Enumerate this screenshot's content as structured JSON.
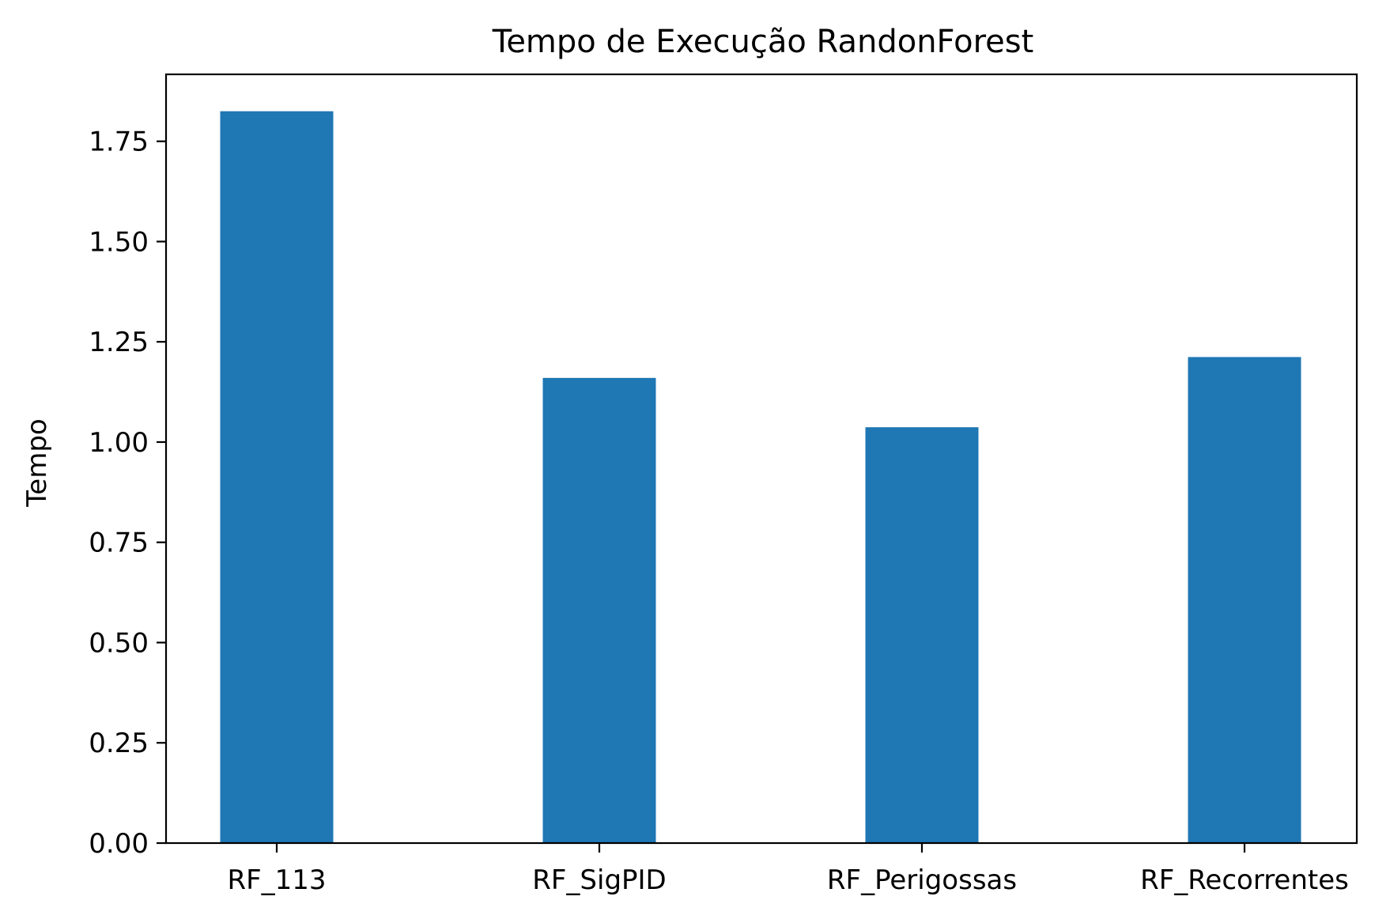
{
  "chart_data": {
    "type": "bar",
    "title": "Tempo de Execução RandonForest",
    "xlabel": "",
    "ylabel": "Tempo",
    "categories": [
      "RF_113",
      "RF_SigPID",
      "RF_Perigossas",
      "RF_Recorrentes"
    ],
    "values": [
      1.825,
      1.16,
      1.037,
      1.212
    ],
    "ylim": [
      0,
      1.917
    ],
    "yticks": [
      0.0,
      0.25,
      0.5,
      0.75,
      1.0,
      1.25,
      1.5,
      1.75
    ],
    "ytick_labels": [
      "0.00",
      "0.25",
      "0.50",
      "0.75",
      "1.00",
      "1.25",
      "1.50",
      "1.75"
    ],
    "bar_color": "#1f77b4",
    "grid": false,
    "legend": "none"
  }
}
